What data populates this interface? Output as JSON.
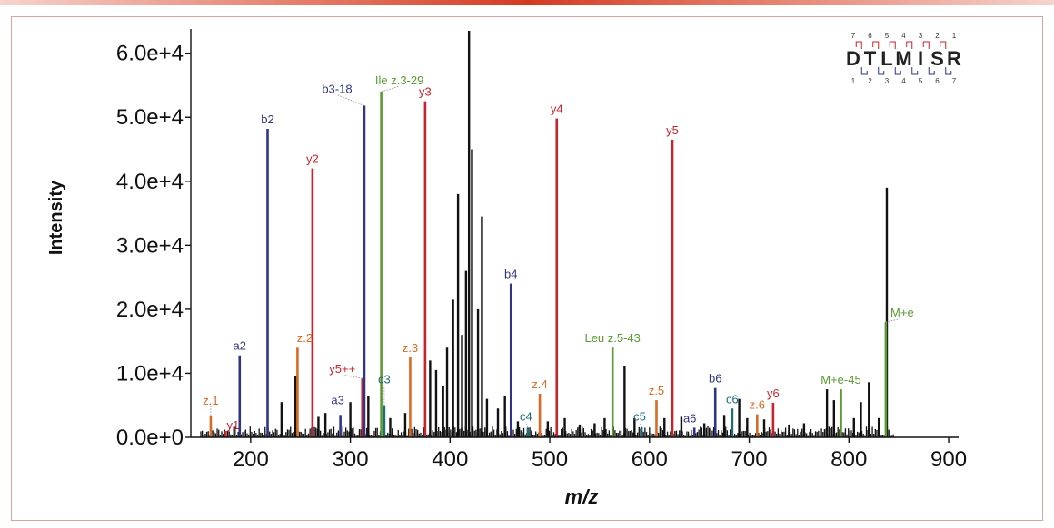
{
  "chart_data": {
    "type": "bar",
    "title": "",
    "xlabel": "m/z",
    "ylabel": "Intensity",
    "xlim": [
      140,
      910
    ],
    "ylim": [
      0,
      63500
    ],
    "x_ticks": [
      200,
      300,
      400,
      500,
      600,
      700,
      800,
      900
    ],
    "x_tick_labels": [
      "200",
      "300",
      "400",
      "500",
      "600",
      "700",
      "800",
      "900"
    ],
    "y_ticks": [
      0,
      10000,
      20000,
      30000,
      40000,
      50000,
      60000
    ],
    "y_tick_labels": [
      "0.0e+0",
      "1.0e+4",
      "2.0e+4",
      "3.0e+4",
      "4.0e+4",
      "5.0e+4",
      "6.0e+4"
    ],
    "peptide": {
      "sequence": "DTLMISR",
      "top_numbers": [
        "7",
        "6",
        "5",
        "4",
        "3",
        "2",
        "1"
      ],
      "bottom_numbers": [
        "1",
        "2",
        "3",
        "4",
        "5",
        "6",
        "7"
      ]
    },
    "annotated_peaks": [
      {
        "label": "z.1",
        "mz": 160,
        "intensity": 3400,
        "series": "z"
      },
      {
        "label": "y1",
        "mz": 175,
        "intensity": 1000,
        "series": "y"
      },
      {
        "label": "a2",
        "mz": 189,
        "intensity": 12800,
        "series": "b"
      },
      {
        "label": "b2",
        "mz": 217,
        "intensity": 48200,
        "series": "b"
      },
      {
        "label": "z.2",
        "mz": 247,
        "intensity": 14000,
        "series": "z"
      },
      {
        "label": "y2",
        "mz": 262,
        "intensity": 42000,
        "series": "y"
      },
      {
        "label": "a3",
        "mz": 290,
        "intensity": 3500,
        "series": "b"
      },
      {
        "label": "y5++",
        "mz": 312,
        "intensity": 9200,
        "series": "y"
      },
      {
        "label": "b3-18",
        "mz": 314,
        "intensity": 51800,
        "series": "b"
      },
      {
        "label": "Ile z.3-29",
        "mz": 331,
        "intensity": 54000,
        "series": "z-internal"
      },
      {
        "label": "c3",
        "mz": 334,
        "intensity": 5000,
        "series": "c"
      },
      {
        "label": "z.3",
        "mz": 360,
        "intensity": 12500,
        "series": "z"
      },
      {
        "label": "y3",
        "mz": 375,
        "intensity": 52500,
        "series": "y"
      },
      {
        "label": "b4",
        "mz": 461,
        "intensity": 24000,
        "series": "b"
      },
      {
        "label": "c4",
        "mz": 478,
        "intensity": 1500,
        "series": "c"
      },
      {
        "label": "z.4",
        "mz": 490,
        "intensity": 6800,
        "series": "z"
      },
      {
        "label": "y4",
        "mz": 507,
        "intensity": 49800,
        "series": "y"
      },
      {
        "label": "Leu z.5-43",
        "mz": 563,
        "intensity": 14000,
        "series": "z-internal"
      },
      {
        "label": "c5",
        "mz": 592,
        "intensity": 1500,
        "series": "c"
      },
      {
        "label": "z.5",
        "mz": 607,
        "intensity": 5800,
        "series": "z"
      },
      {
        "label": "y5",
        "mz": 623,
        "intensity": 46500,
        "series": "y"
      },
      {
        "label": "a6",
        "mz": 645,
        "intensity": 1500,
        "series": "b"
      },
      {
        "label": "b6",
        "mz": 666,
        "intensity": 7700,
        "series": "b"
      },
      {
        "label": "c6",
        "mz": 683,
        "intensity": 4500,
        "series": "c"
      },
      {
        "label": "z.6",
        "mz": 708,
        "intensity": 3600,
        "series": "z"
      },
      {
        "label": "y6",
        "mz": 724,
        "intensity": 5400,
        "series": "y"
      },
      {
        "label": "M+e-45",
        "mz": 792,
        "intensity": 7500,
        "series": "z-internal"
      },
      {
        "label": "M+e",
        "mz": 837,
        "intensity": 18000,
        "series": "z-internal"
      }
    ],
    "unannotated_peaks": [
      {
        "mz": 231,
        "intensity": 5500
      },
      {
        "mz": 245,
        "intensity": 9500
      },
      {
        "mz": 268,
        "intensity": 3200
      },
      {
        "mz": 275,
        "intensity": 3800
      },
      {
        "mz": 300,
        "intensity": 5500
      },
      {
        "mz": 318,
        "intensity": 6500
      },
      {
        "mz": 340,
        "intensity": 3000
      },
      {
        "mz": 355,
        "intensity": 3800
      },
      {
        "mz": 380,
        "intensity": 12000
      },
      {
        "mz": 386,
        "intensity": 10500
      },
      {
        "mz": 393,
        "intensity": 8000
      },
      {
        "mz": 397,
        "intensity": 14000
      },
      {
        "mz": 403,
        "intensity": 21500
      },
      {
        "mz": 408,
        "intensity": 38000
      },
      {
        "mz": 412,
        "intensity": 16000
      },
      {
        "mz": 416,
        "intensity": 26000
      },
      {
        "mz": 419,
        "intensity": 63500
      },
      {
        "mz": 422,
        "intensity": 45000
      },
      {
        "mz": 428,
        "intensity": 20000
      },
      {
        "mz": 432,
        "intensity": 34500
      },
      {
        "mz": 437,
        "intensity": 6000
      },
      {
        "mz": 448,
        "intensity": 4500
      },
      {
        "mz": 455,
        "intensity": 6500
      },
      {
        "mz": 468,
        "intensity": 2500
      },
      {
        "mz": 498,
        "intensity": 2500
      },
      {
        "mz": 515,
        "intensity": 3000
      },
      {
        "mz": 530,
        "intensity": 2000
      },
      {
        "mz": 545,
        "intensity": 2200
      },
      {
        "mz": 555,
        "intensity": 3000
      },
      {
        "mz": 575,
        "intensity": 11200
      },
      {
        "mz": 585,
        "intensity": 3000
      },
      {
        "mz": 615,
        "intensity": 3000
      },
      {
        "mz": 632,
        "intensity": 3200
      },
      {
        "mz": 655,
        "intensity": 2200
      },
      {
        "mz": 675,
        "intensity": 3500
      },
      {
        "mz": 690,
        "intensity": 6000
      },
      {
        "mz": 698,
        "intensity": 3000
      },
      {
        "mz": 715,
        "intensity": 2800
      },
      {
        "mz": 740,
        "intensity": 2000
      },
      {
        "mz": 755,
        "intensity": 2200
      },
      {
        "mz": 778,
        "intensity": 7500
      },
      {
        "mz": 785,
        "intensity": 5800
      },
      {
        "mz": 805,
        "intensity": 3000
      },
      {
        "mz": 812,
        "intensity": 5500
      },
      {
        "mz": 820,
        "intensity": 8600
      },
      {
        "mz": 830,
        "intensity": 3000
      },
      {
        "mz": 838,
        "intensity": 39000
      }
    ]
  },
  "colors": {
    "b": "#2e3586",
    "y": "#c8232b",
    "z": "#d96a23",
    "c": "#1c6c7a",
    "z-internal": "#5b9a33",
    "other": "#111111",
    "frame": "#d8a5a0"
  }
}
